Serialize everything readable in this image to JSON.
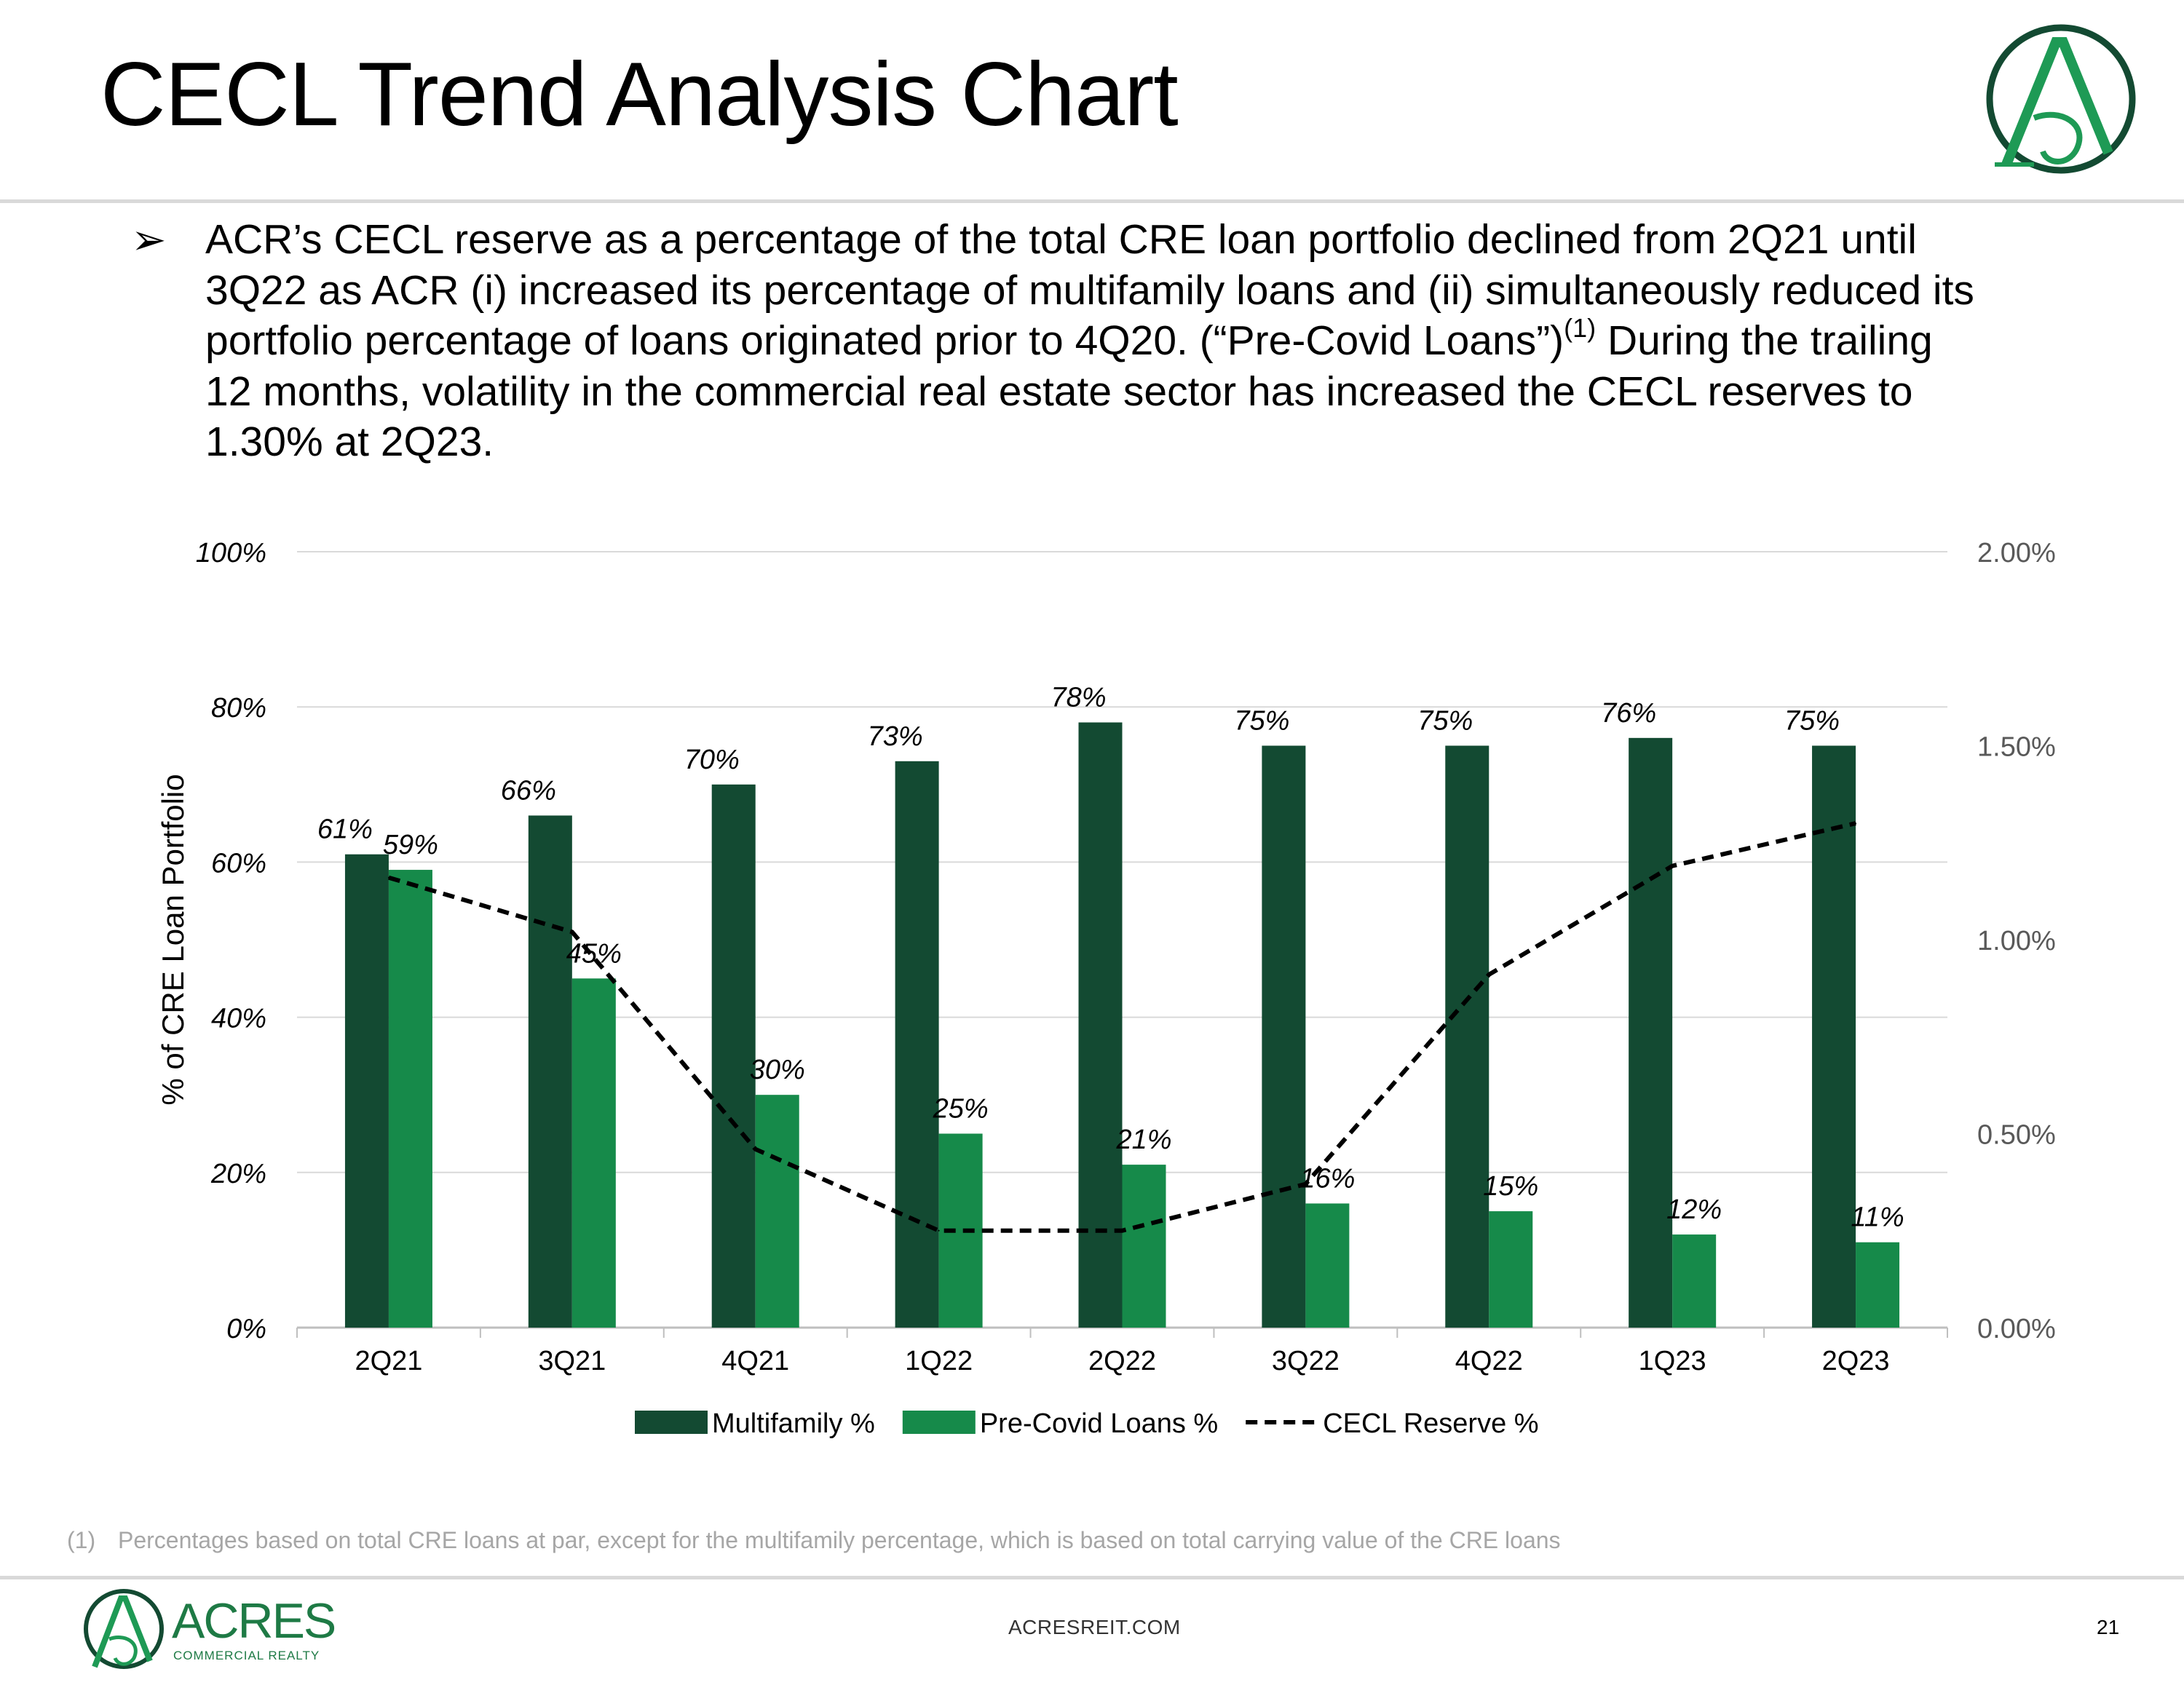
{
  "header": {
    "title": "CECL Trend Analysis Chart"
  },
  "bullet": {
    "marker": "➢",
    "text_before": "ACR’s CECL reserve as a percentage of the total CRE loan portfolio declined from 2Q21 until 3Q22 as ACR (i) increased its percentage of multifamily loans and (ii) simultaneously reduced its portfolio percentage of loans originated prior to 4Q20. (“Pre-Covid Loans”)",
    "superscript": "(1)",
    "text_after": " During the trailing 12 months, volatility in the commercial real estate sector has increased the CECL reserves to 1.30% at 2Q23."
  },
  "chart_data": {
    "type": "bar",
    "categories": [
      "2Q21",
      "3Q21",
      "4Q21",
      "1Q22",
      "2Q22",
      "3Q22",
      "4Q22",
      "1Q23",
      "2Q23"
    ],
    "series": [
      {
        "name": "Multifamily %",
        "axis": "left",
        "kind": "bar",
        "color": "#134a32",
        "values": [
          61,
          66,
          70,
          73,
          78,
          75,
          75,
          76,
          75
        ],
        "labels": [
          "61%",
          "66%",
          "70%",
          "73%",
          "78%",
          "75%",
          "75%",
          "76%",
          "75%"
        ]
      },
      {
        "name": "Pre-Covid Loans %",
        "axis": "left",
        "kind": "bar",
        "color": "#168a4a",
        "values": [
          59,
          45,
          30,
          25,
          21,
          16,
          15,
          12,
          11
        ],
        "labels": [
          "59%",
          "45%",
          "30%",
          "25%",
          "21%",
          "16%",
          "15%",
          "12%",
          "11%"
        ]
      },
      {
        "name": "CECL Reserve %",
        "axis": "right",
        "kind": "line",
        "style": "dashed",
        "color": "#000000",
        "values": [
          1.16,
          1.02,
          0.46,
          0.25,
          0.25,
          0.37,
          0.91,
          1.19,
          1.3
        ]
      }
    ],
    "left_axis": {
      "label": "% of CRE Loan Portfolio",
      "min": 0,
      "max": 100,
      "ticks": [
        0,
        20,
        40,
        60,
        80,
        100
      ],
      "tick_labels": [
        "0%",
        "20%",
        "40%",
        "60%",
        "80%",
        "100%"
      ]
    },
    "right_axis": {
      "min": 0,
      "max": 2,
      "ticks": [
        0,
        0.5,
        1,
        1.5,
        2
      ],
      "tick_labels": [
        "0.00%",
        "0.50%",
        "1.00%",
        "1.50%",
        "2.00%"
      ]
    },
    "grid": true,
    "legend_position": "bottom-center"
  },
  "footnote": {
    "number": "(1)",
    "text": "Percentages based on total CRE loans at par, except for the multifamily percentage, which is based on total carrying value of the CRE loans"
  },
  "footer": {
    "brand": "ACRES",
    "tagline": "COMMERCIAL REALTY",
    "url": "ACRESREIT.COM",
    "page_number": "21"
  }
}
